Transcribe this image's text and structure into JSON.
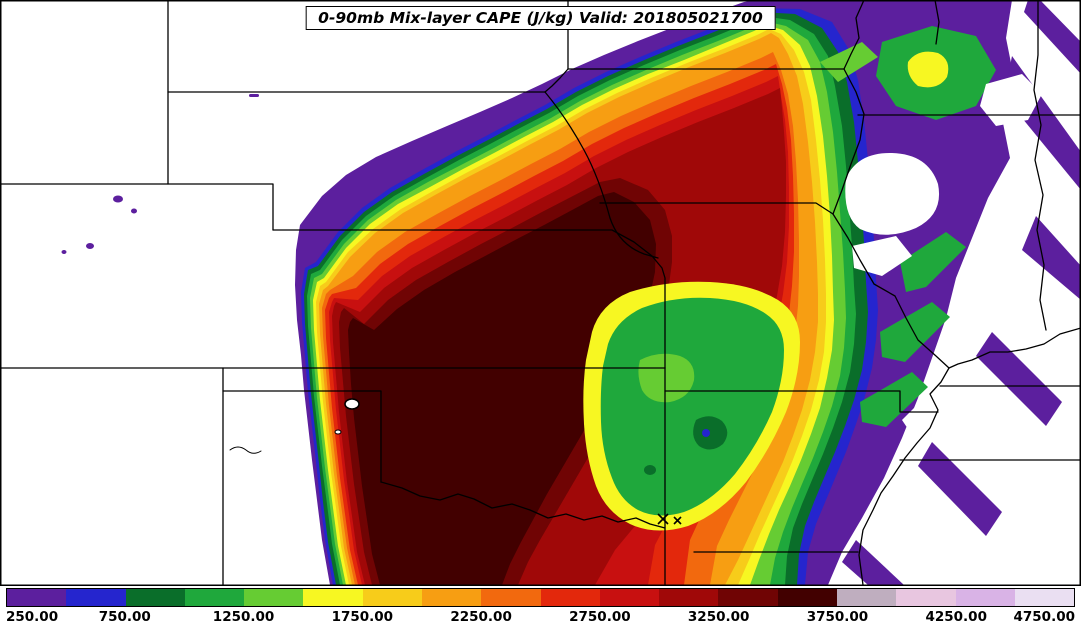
{
  "title": {
    "text": "0-90mb Mix-layer CAPE (J/kg) Valid: 201805021700"
  },
  "chart_data": {
    "type": "heatmap",
    "title": "0-90mb Mix-layer CAPE (J/kg) Valid: 201805021700",
    "variable": "0-90mb Mix-layer CAPE",
    "units": "J/kg",
    "valid_time": "201805021700",
    "geography": "Filled CAPE contours over central United States state boundaries (high plains dryline west, Mississippi valley east)",
    "field_features": [
      "Maximum CAPE 3500-3750 J/kg core over western Kansas into western Oklahoma",
      "Sharp western gradient (dryline) near the Colorado/Kansas border",
      "Broad 2500-3250 J/kg area across central Missouri and central Oklahoma",
      "Relative minimum 1250-2000 J/kg pocket over eastern Kansas / northeast Oklahoma",
      "250-750 J/kg fringe over Iowa, Illinois and the Mississippi valley with clear (<250) slots",
      "Clear air (<250 J/kg) over Colorado, Wyoming and far right edge except narrow 250-500 streaks"
    ],
    "colorbar": {
      "min": 250,
      "max": 4750,
      "interval": 250,
      "levels": [
        250,
        500,
        750,
        1000,
        1250,
        1500,
        1750,
        2000,
        2250,
        2500,
        2750,
        3000,
        3250,
        3500,
        3750,
        4000,
        4250,
        4500,
        4750
      ],
      "colors": [
        "#5C1F9E",
        "#2525CE",
        "#0A6E2A",
        "#1FA83C",
        "#66CC33",
        "#F7F722",
        "#F7CC1A",
        "#F79E12",
        "#F2690E",
        "#E3280C",
        "#C81010",
        "#A00808",
        "#700404",
        "#420000",
        "#BFAEBF",
        "#E8C6E0",
        "#D9B3E6",
        "#EADFF2"
      ],
      "tick_labels": [
        "250.00",
        "750.00",
        "1250.00",
        "1750.00",
        "2250.00",
        "2750.00",
        "3250.00",
        "3750.00",
        "4250.00",
        "4750.00"
      ],
      "tick_values": [
        250,
        750,
        1250,
        1750,
        2250,
        2750,
        3250,
        3750,
        4250,
        4750
      ]
    },
    "palette": {
      "purple": "#5C1F9E",
      "blue": "#2525CE",
      "dark_green": "#0A6E2A",
      "green": "#1FA83C",
      "light_green": "#66CC33",
      "yellow": "#F7F722",
      "gold": "#F7CC1A",
      "orange": "#F79E12",
      "dark_orange": "#F2690E",
      "orange_red": "#E3280C",
      "red": "#C81010",
      "dark_red": "#A00808",
      "maroon": "#700404",
      "darkest": "#420000"
    }
  }
}
